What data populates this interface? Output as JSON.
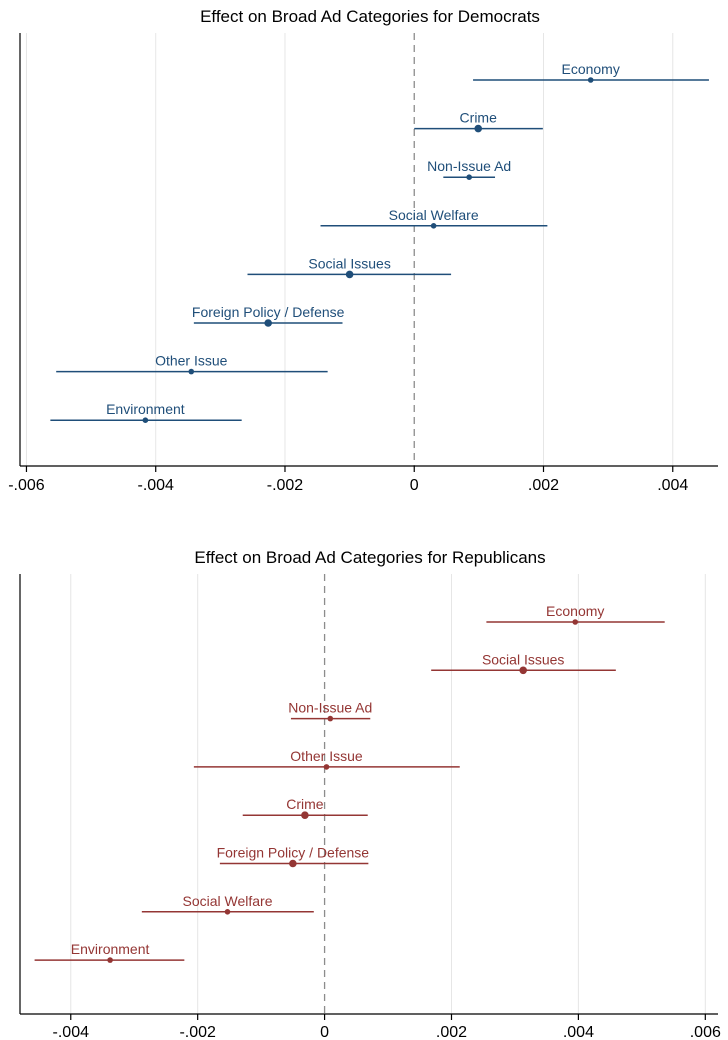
{
  "chart_data": [
    {
      "type": "scatter",
      "title": "Effect on Broad Ad Categories for Democrats",
      "xlabel": "",
      "ylabel": "",
      "xlim": [
        -0.0061,
        0.0047
      ],
      "xticks": [
        -0.006,
        -0.004,
        -0.002,
        0,
        0.002,
        0.004
      ],
      "xtick_labels": [
        "-.006",
        "-.004",
        "-.002",
        "0",
        ".002",
        ".004"
      ],
      "grid": true,
      "reference_line_x": 0,
      "color": "#1f4e79",
      "series": [
        {
          "label": "Economy",
          "estimate": 0.00273,
          "ci": [
            0.00091,
            0.00456
          ]
        },
        {
          "label": "Crime",
          "estimate": 0.00099,
          "ci": [
            0.0,
            0.00199
          ]
        },
        {
          "label": "Non-Issue Ad",
          "estimate": 0.00085,
          "ci": [
            0.00045,
            0.00125
          ]
        },
        {
          "label": "Social Welfare",
          "estimate": 0.0003,
          "ci": [
            -0.00145,
            0.00206
          ]
        },
        {
          "label": "Social Issues",
          "estimate": -0.001,
          "ci": [
            -0.00258,
            0.00057
          ]
        },
        {
          "label": "Foreign Policy / Defense",
          "estimate": -0.00226,
          "ci": [
            -0.00341,
            -0.00111
          ]
        },
        {
          "label": "Other Issue",
          "estimate": -0.00345,
          "ci": [
            -0.00554,
            -0.00134
          ]
        },
        {
          "label": "Environment",
          "estimate": -0.00416,
          "ci": [
            -0.00563,
            -0.00267
          ]
        }
      ]
    },
    {
      "type": "scatter",
      "title": "Effect on Broad Ad Categories for Republicans",
      "xlabel": "",
      "ylabel": "",
      "xlim": [
        -0.0048,
        0.0062
      ],
      "xticks": [
        -0.004,
        -0.002,
        0,
        0.002,
        0.004,
        0.006
      ],
      "xtick_labels": [
        "-.004",
        "-.002",
        "0",
        ".002",
        ".004",
        ".006"
      ],
      "grid": true,
      "reference_line_x": 0,
      "color": "#943634",
      "series": [
        {
          "label": "Economy",
          "estimate": 0.00395,
          "ci": [
            0.00255,
            0.00536
          ]
        },
        {
          "label": "Social Issues",
          "estimate": 0.00313,
          "ci": [
            0.00168,
            0.00459
          ]
        },
        {
          "label": "Non-Issue Ad",
          "estimate": 9e-05,
          "ci": [
            -0.00053,
            0.00072
          ]
        },
        {
          "label": "Other Issue",
          "estimate": 3e-05,
          "ci": [
            -0.00206,
            0.00213
          ]
        },
        {
          "label": "Crime",
          "estimate": -0.00031,
          "ci": [
            -0.00129,
            0.00068
          ]
        },
        {
          "label": "Foreign Policy / Defense",
          "estimate": -0.0005,
          "ci": [
            -0.00165,
            0.00069
          ]
        },
        {
          "label": "Social Welfare",
          "estimate": -0.00153,
          "ci": [
            -0.00288,
            -0.00017
          ]
        },
        {
          "label": "Environment",
          "estimate": -0.00338,
          "ci": [
            -0.00457,
            -0.00221
          ]
        }
      ]
    }
  ]
}
